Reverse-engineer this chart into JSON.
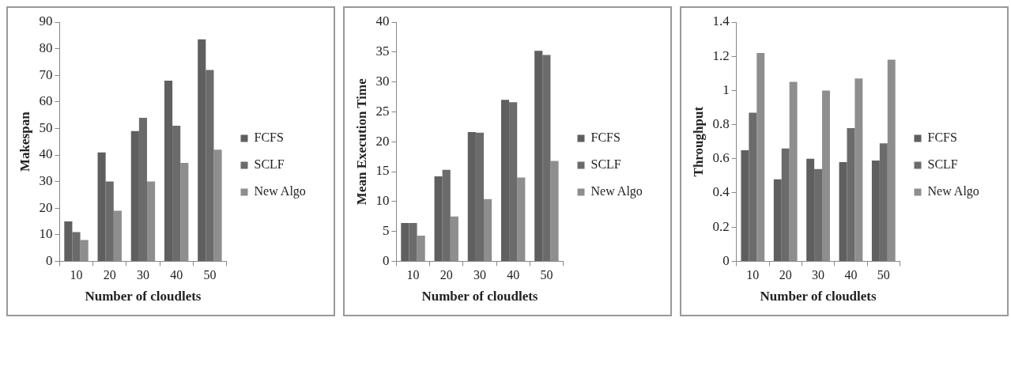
{
  "chart_data": [
    {
      "type": "bar",
      "xlabel": "Number of cloudlets",
      "ylabel": "Makespan",
      "categories": [
        "10",
        "20",
        "30",
        "40",
        "50"
      ],
      "series": [
        {
          "name": "FCFS",
          "color": "#5f5f5f",
          "values": [
            15,
            41,
            49,
            68,
            83.5
          ]
        },
        {
          "name": "SCLF",
          "color": "#6b6b6b",
          "values": [
            11,
            30,
            54,
            51,
            72
          ]
        },
        {
          "name": "New Algo",
          "color": "#8e8e8e",
          "values": [
            8,
            19,
            30,
            37,
            42
          ]
        }
      ],
      "ylim": [
        0,
        90
      ],
      "yticks": [
        0,
        10,
        20,
        30,
        40,
        50,
        60,
        70,
        80,
        90
      ],
      "grid": false,
      "legend": "right"
    },
    {
      "type": "bar",
      "xlabel": "Number of cloudlets",
      "ylabel": "Mean Execution Time",
      "categories": [
        "10",
        "20",
        "30",
        "40",
        "50"
      ],
      "series": [
        {
          "name": "FCFS",
          "color": "#5f5f5f",
          "values": [
            6.4,
            14.2,
            21.6,
            27,
            35.2
          ]
        },
        {
          "name": "SCLF",
          "color": "#6b6b6b",
          "values": [
            6.4,
            15.3,
            21.5,
            26.6,
            34.5
          ]
        },
        {
          "name": "New Algo",
          "color": "#8e8e8e",
          "values": [
            4.3,
            7.5,
            10.4,
            14,
            16.8
          ]
        }
      ],
      "ylim": [
        0,
        40
      ],
      "yticks": [
        0,
        5,
        10,
        15,
        20,
        25,
        30,
        35,
        40
      ],
      "grid": false,
      "legend": "right"
    },
    {
      "type": "bar",
      "xlabel": "Number of cloudlets",
      "ylabel": "Throughput",
      "categories": [
        "10",
        "20",
        "30",
        "40",
        "50"
      ],
      "series": [
        {
          "name": "FCFS",
          "color": "#5f5f5f",
          "values": [
            0.65,
            0.48,
            0.6,
            0.58,
            0.59
          ]
        },
        {
          "name": "SCLF",
          "color": "#6b6b6b",
          "values": [
            0.87,
            0.66,
            0.54,
            0.78,
            0.69
          ]
        },
        {
          "name": "New Algo",
          "color": "#8e8e8e",
          "values": [
            1.22,
            1.05,
            1.0,
            1.07,
            1.18
          ]
        }
      ],
      "ylim": [
        0,
        1.4
      ],
      "yticks": [
        0,
        0.2,
        0.4,
        0.6,
        0.8,
        1,
        1.2,
        1.4
      ],
      "grid": false,
      "legend": "right"
    }
  ]
}
